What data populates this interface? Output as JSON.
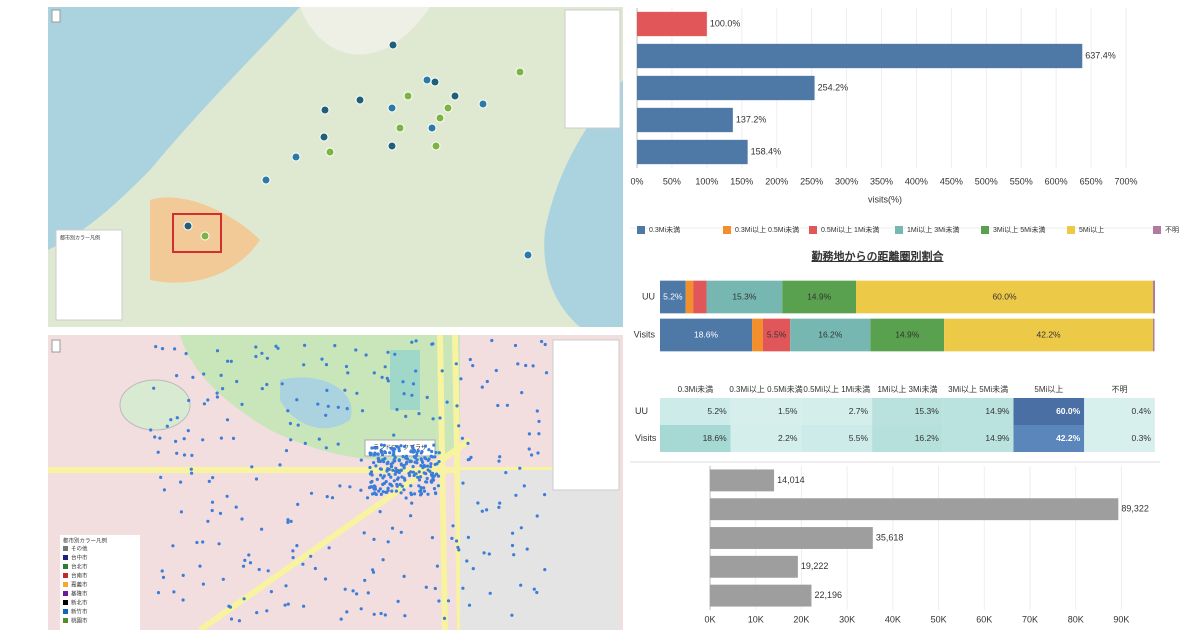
{
  "maps": {
    "popup": "ランドマークプラザ",
    "legend_title": "都市別カラー凡例",
    "legend_items": [
      "その他",
      "台中市",
      "台北市",
      "台南市",
      "嘉義市",
      "基隆市",
      "新北市",
      "新竹市",
      "桃園市"
    ]
  },
  "chart_data": [
    {
      "type": "bar",
      "orientation": "horizontal",
      "categories": [
        null,
        null,
        null,
        null,
        null
      ],
      "values": [
        100.0,
        637.4,
        254.2,
        137.2,
        158.4
      ],
      "value_labels": [
        "100.0%",
        "637.4%",
        "254.2%",
        "137.2%",
        "158.4%"
      ],
      "colors": [
        "#e15759",
        "#4e79a7",
        "#4e79a7",
        "#4e79a7",
        "#4e79a7"
      ],
      "xlabel": "visits(%)",
      "xlim": [
        0,
        710
      ],
      "xticks": [
        {
          "value": 0,
          "label": "0%"
        },
        {
          "value": 50,
          "label": "50%"
        },
        {
          "value": 100,
          "label": "100%"
        },
        {
          "value": 150,
          "label": "150%"
        },
        {
          "value": 200,
          "label": "200%"
        },
        {
          "value": 250,
          "label": "250%"
        },
        {
          "value": 300,
          "label": "300%"
        },
        {
          "value": 350,
          "label": "350%"
        },
        {
          "value": 400,
          "label": "400%"
        },
        {
          "value": 450,
          "label": "450%"
        },
        {
          "value": 500,
          "label": "500%"
        },
        {
          "value": 550,
          "label": "550%"
        },
        {
          "value": 600,
          "label": "600%"
        },
        {
          "value": 650,
          "label": "650%"
        },
        {
          "value": 700,
          "label": "700%"
        }
      ],
      "grid": true
    },
    {
      "type": "stacked_bar",
      "orientation": "horizontal",
      "title": "勤務地からの距離圏別割合",
      "categories": [
        "UU",
        "Visits"
      ],
      "xlim": [
        0,
        100
      ],
      "series": [
        {
          "name": "0.3Mi未満",
          "color": "#4e79a7",
          "values": [
            5.2,
            18.6
          ],
          "value_labels": [
            "5.2%",
            "18.6%"
          ]
        },
        {
          "name": "0.3Mi以上 0.5Mi未満",
          "color": "#f28e2b",
          "values": [
            1.5,
            2.2
          ],
          "value_labels": [
            null,
            null
          ]
        },
        {
          "name": "0.5Mi以上 1Mi未満",
          "color": "#e15759",
          "values": [
            2.7,
            5.5
          ],
          "value_labels": [
            null,
            "5.5%"
          ]
        },
        {
          "name": "1Mi以上 3Mi未満",
          "color": "#76b7b2",
          "values": [
            15.3,
            16.2
          ],
          "value_labels": [
            "15.3%",
            "16.2%"
          ]
        },
        {
          "name": "3Mi以上 5Mi未満",
          "color": "#59a14f",
          "values": [
            14.9,
            14.9
          ],
          "value_labels": [
            "14.9%",
            "14.9%"
          ]
        },
        {
          "name": "5Mi以上",
          "color": "#edc948",
          "values": [
            60.0,
            42.2
          ],
          "value_labels": [
            "60.0%",
            "42.2%"
          ]
        },
        {
          "name": "不明",
          "color": "#b07aa1",
          "values": [
            0.4,
            0.3
          ],
          "value_labels": [
            null,
            null
          ]
        }
      ]
    },
    {
      "type": "bar",
      "orientation": "horizontal",
      "categories": [
        null,
        null,
        null,
        null,
        null
      ],
      "values": [
        14014,
        89322,
        35618,
        19222,
        22196
      ],
      "value_labels": [
        "14,014",
        "89,322",
        "35,618",
        "19,222",
        "22,196"
      ],
      "color": "#9e9e9e",
      "xlim": [
        0,
        98000
      ],
      "xticks": [
        {
          "value": 0,
          "label": "0K"
        },
        {
          "value": 10000,
          "label": "10K"
        },
        {
          "value": 20000,
          "label": "20K"
        },
        {
          "value": 30000,
          "label": "30K"
        },
        {
          "value": 40000,
          "label": "40K"
        },
        {
          "value": 50000,
          "label": "50K"
        },
        {
          "value": 60000,
          "label": "60K"
        },
        {
          "value": 70000,
          "label": "70K"
        },
        {
          "value": 80000,
          "label": "80K"
        },
        {
          "value": 90000,
          "label": "90K"
        }
      ],
      "grid": true
    }
  ],
  "table": {
    "columns": [
      "0.3Mi未満",
      "0.3Mi以上 0.5Mi未満",
      "0.5Mi以上 1Mi未満",
      "1Mi以上 3Mi未満",
      "3Mi以上 5Mi未満",
      "5Mi以上",
      "不明"
    ],
    "rows": [
      [
        "UU",
        "5.2%",
        "1.5%",
        "2.7%",
        "15.3%",
        "14.9%",
        "60.0%",
        "0.4%"
      ],
      [
        "Visits",
        "18.6%",
        "2.2%",
        "5.5%",
        "16.2%",
        "14.9%",
        "42.2%",
        "0.3%"
      ]
    ],
    "colors": [
      [
        "#cdebe8",
        "#d6efec",
        "#d3eeeb",
        "#b9e1de",
        "#bae2df",
        "#4a6fa5",
        "#d8f0ed"
      ],
      [
        "#a6d8d4",
        "#d4eeeb",
        "#cdebe8",
        "#b6e0dc",
        "#bae2df",
        "#5b86bb",
        "#d8f0ed"
      ]
    ]
  }
}
